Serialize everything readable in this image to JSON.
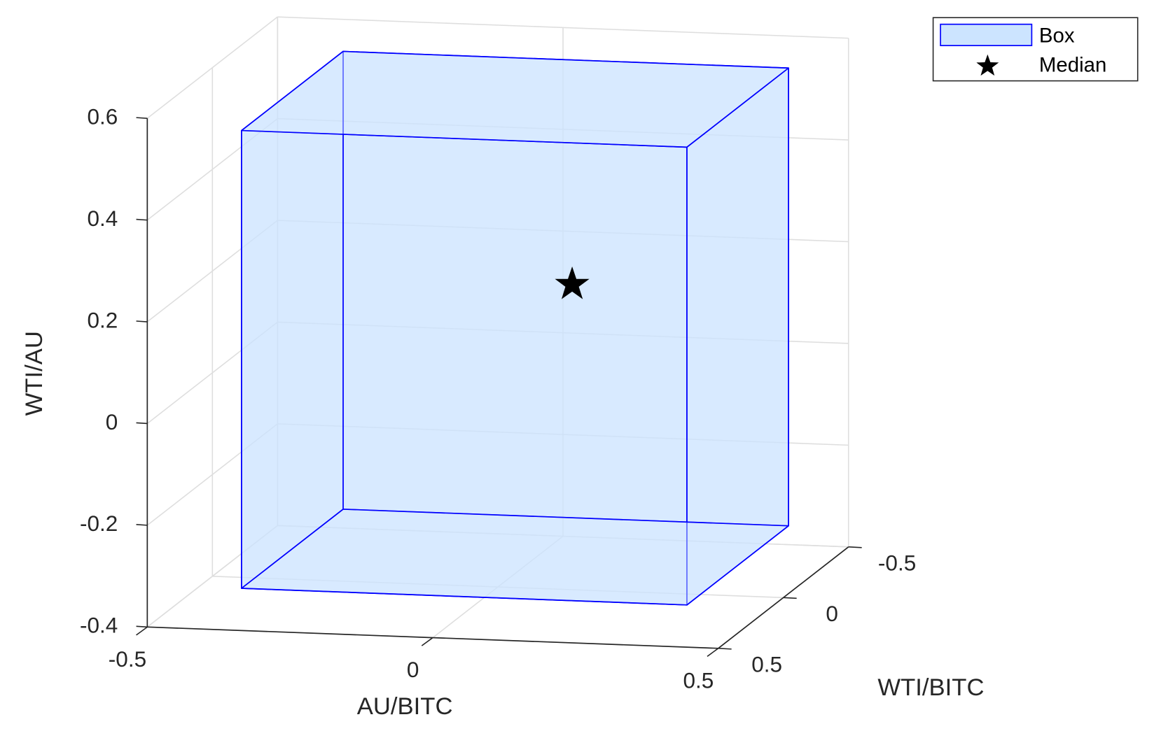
{
  "chart_data": {
    "type": "box3d",
    "xlabel": "AU/BITC",
    "ylabel": "WTI/BITC",
    "zlabel": "WTI/AU",
    "xlim": [
      -0.5,
      0.5
    ],
    "ylim": [
      -0.5,
      0.5
    ],
    "zlim": [
      -0.4,
      0.6
    ],
    "xticks": [
      -0.5,
      0,
      0.5
    ],
    "yticks": [
      -0.5,
      0,
      0.5
    ],
    "zticks": [
      -0.4,
      -0.2,
      0,
      0.2,
      0.4,
      0.6
    ],
    "grid": true,
    "legend": "northeast",
    "box": {
      "name": "Box",
      "color": "#cce4ff",
      "edge_color": "#0000ff",
      "x": [
        -0.36,
        0.42
      ],
      "y": [
        -0.39,
        0.39
      ],
      "z": [
        -0.34,
        0.56
      ]
    },
    "median": {
      "name": "Median",
      "color": "#000000",
      "x": 0.13,
      "y": 0,
      "z": 0.2
    }
  }
}
